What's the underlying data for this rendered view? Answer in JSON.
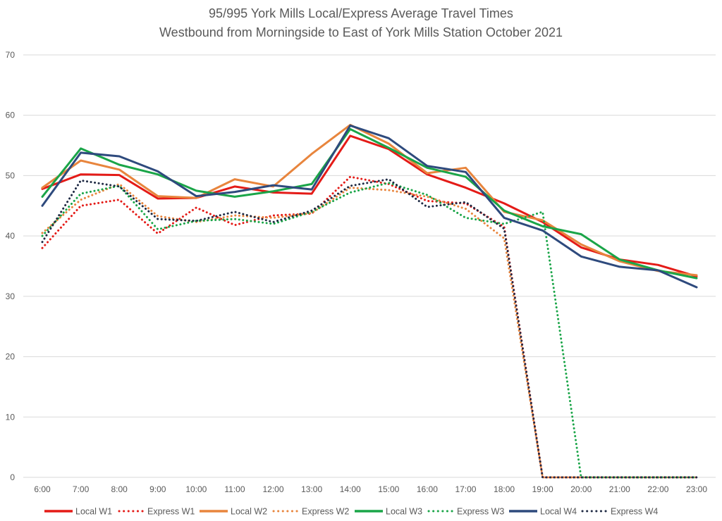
{
  "chart_data": {
    "type": "line",
    "title": "95/995 York Mills Local/Express Average Travel Times",
    "subtitle": "Westbound from Morningside to East of York Mills Station October 2021",
    "xlabel": "",
    "ylabel": "",
    "ylim": [
      0,
      70
    ],
    "yticks": [
      0,
      10,
      20,
      30,
      40,
      50,
      60,
      70
    ],
    "grid": true,
    "legend_position": "bottom",
    "categories": [
      "6:00",
      "7:00",
      "8:00",
      "9:00",
      "10:00",
      "11:00",
      "12:00",
      "13:00",
      "14:00",
      "15:00",
      "16:00",
      "17:00",
      "18:00",
      "19:00",
      "20:00",
      "21:00",
      "22:00",
      "23:00"
    ],
    "series": [
      {
        "name": "Local W1",
        "style": "solid",
        "color": "#e41b17",
        "values": [
          47.8,
          50.2,
          50.1,
          46.2,
          46.3,
          48.2,
          47.2,
          47.0,
          56.6,
          54.4,
          50.2,
          48.0,
          45.4,
          42.3,
          38.1,
          36.1,
          35.2,
          33.3
        ]
      },
      {
        "name": "Express W1",
        "style": "dotted",
        "color": "#e41b17",
        "values": [
          38.0,
          45.0,
          46.0,
          40.4,
          44.7,
          41.8,
          43.4,
          43.7,
          49.8,
          48.6,
          45.8,
          45.4,
          41.5,
          0,
          0,
          0,
          0,
          0
        ]
      },
      {
        "name": "Local W2",
        "style": "solid",
        "color": "#e8853d",
        "values": [
          48.0,
          52.5,
          51.0,
          46.6,
          46.3,
          49.4,
          48.2,
          53.6,
          58.4,
          55.3,
          50.4,
          51.3,
          44.0,
          42.6,
          38.6,
          35.8,
          34.2,
          33.5
        ]
      },
      {
        "name": "Express W2",
        "style": "dotted",
        "color": "#e8853d",
        "values": [
          40.5,
          46.0,
          48.6,
          43.3,
          42.3,
          43.4,
          43.0,
          43.8,
          48.0,
          47.6,
          46.5,
          44.5,
          39.6,
          0,
          0,
          0,
          0,
          0
        ]
      },
      {
        "name": "Local W3",
        "style": "solid",
        "color": "#1aa548",
        "values": [
          46.5,
          54.5,
          51.8,
          50.2,
          47.5,
          46.5,
          47.4,
          48.6,
          57.7,
          54.6,
          51.3,
          49.8,
          44.2,
          41.6,
          40.3,
          36.1,
          34.3,
          33.0
        ]
      },
      {
        "name": "Express W3",
        "style": "dotted",
        "color": "#1aa548",
        "values": [
          40.0,
          47.0,
          48.3,
          41.1,
          42.5,
          42.8,
          42.0,
          44.0,
          47.2,
          48.8,
          46.8,
          43.0,
          42.0,
          44.0,
          0,
          0,
          0,
          0
        ]
      },
      {
        "name": "Local W4",
        "style": "solid",
        "color": "#2e4a7d",
        "values": [
          45.0,
          53.8,
          53.2,
          50.7,
          46.6,
          47.3,
          48.4,
          47.7,
          58.3,
          56.2,
          51.6,
          50.6,
          43.0,
          40.9,
          36.6,
          34.9,
          34.3,
          31.5
        ]
      },
      {
        "name": "Express W4",
        "style": "dotted",
        "color": "#1f2a44",
        "values": [
          39.0,
          49.2,
          48.2,
          42.8,
          42.5,
          44.0,
          42.3,
          44.2,
          48.3,
          49.4,
          44.8,
          45.6,
          41.2,
          0,
          0,
          0,
          0,
          0
        ]
      }
    ]
  }
}
